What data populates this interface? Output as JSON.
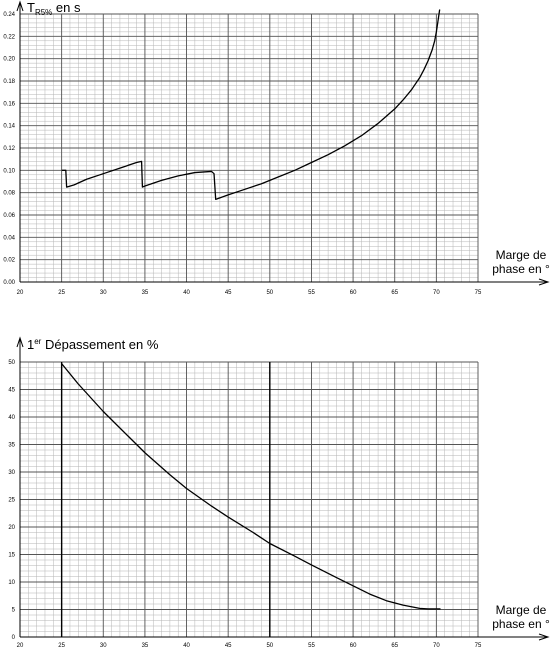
{
  "chart_data": [
    {
      "type": "line",
      "title": "",
      "ylabel_main": "T",
      "ylabel_sub": "R5%",
      "ylabel_suffix": " en s",
      "xlabel_line1": "Marge de",
      "xlabel_line2": "phase en °",
      "xlim": [
        20,
        75
      ],
      "ylim": [
        0,
        0.24
      ],
      "x_ticks": [
        20,
        25,
        30,
        35,
        40,
        45,
        50,
        55,
        60,
        65,
        70,
        75
      ],
      "x_tick_labels": [
        "20",
        "25",
        "30",
        "35",
        "40",
        "45",
        "50",
        "55",
        "60",
        "65",
        "70",
        "75"
      ],
      "y_ticks": [
        0,
        0.02,
        0.04,
        0.06,
        0.08,
        0.1,
        0.12,
        0.14,
        0.16,
        0.18,
        0.2,
        0.22,
        0.24
      ],
      "y_tick_labels": [
        "0.00",
        "0.02",
        "0.04",
        "0.06",
        "0.08",
        "0.10",
        "0.12",
        "0.14",
        "0.16",
        "0.18",
        "0.20",
        "0.22",
        "0.24"
      ],
      "grid": true,
      "series": [
        {
          "name": "TR5%",
          "x": [
            25,
            25.5,
            25.6,
            26.5,
            28,
            30,
            32,
            34,
            34.6,
            34.7,
            35,
            37,
            39,
            41,
            43,
            43.3,
            43.5,
            45,
            47,
            49,
            51,
            53,
            55,
            57,
            59,
            61,
            63,
            65,
            66,
            67,
            68,
            68.5,
            69,
            69.5,
            69.8,
            70,
            70.2,
            70.4
          ],
          "y": [
            0.1,
            0.1,
            0.085,
            0.087,
            0.092,
            0.097,
            0.102,
            0.107,
            0.108,
            0.085,
            0.086,
            0.091,
            0.095,
            0.098,
            0.099,
            0.097,
            0.074,
            0.078,
            0.083,
            0.088,
            0.094,
            0.1,
            0.107,
            0.114,
            0.122,
            0.131,
            0.142,
            0.155,
            0.163,
            0.172,
            0.183,
            0.19,
            0.198,
            0.208,
            0.216,
            0.224,
            0.234,
            0.244
          ]
        }
      ]
    },
    {
      "type": "line",
      "title": "",
      "ylabel_main": "1",
      "ylabel_sup": "er",
      "ylabel_suffix": " Dépassement en %",
      "xlabel_line1": "Marge de",
      "xlabel_line2": "phase en °",
      "xlim": [
        20,
        75
      ],
      "ylim": [
        0,
        50
      ],
      "x_ticks": [
        20,
        25,
        30,
        35,
        40,
        45,
        50,
        55,
        60,
        65,
        70,
        75
      ],
      "x_tick_labels": [
        "20",
        "25",
        "30",
        "35",
        "40",
        "45",
        "50",
        "55",
        "60",
        "65",
        "70",
        "75"
      ],
      "y_ticks": [
        0,
        5,
        10,
        15,
        20,
        25,
        30,
        35,
        40,
        45,
        50
      ],
      "y_tick_labels": [
        "0",
        "5",
        "10",
        "15",
        "20",
        "25",
        "30",
        "35",
        "40",
        "45",
        "50"
      ],
      "grid": true,
      "series": [
        {
          "name": "1er Dépassement",
          "x": [
            25,
            27,
            30,
            33,
            35,
            38,
            40,
            43,
            45,
            48,
            50,
            53,
            55,
            58,
            60,
            62,
            64,
            66,
            68,
            69,
            70,
            70.5
          ],
          "y": [
            49.7,
            46,
            41,
            36.5,
            33.5,
            29.5,
            27,
            23.8,
            21.8,
            19,
            17,
            14.7,
            13.1,
            10.8,
            9.3,
            7.8,
            6.6,
            5.8,
            5.2,
            5.1,
            5.1,
            5.1
          ]
        }
      ]
    }
  ]
}
